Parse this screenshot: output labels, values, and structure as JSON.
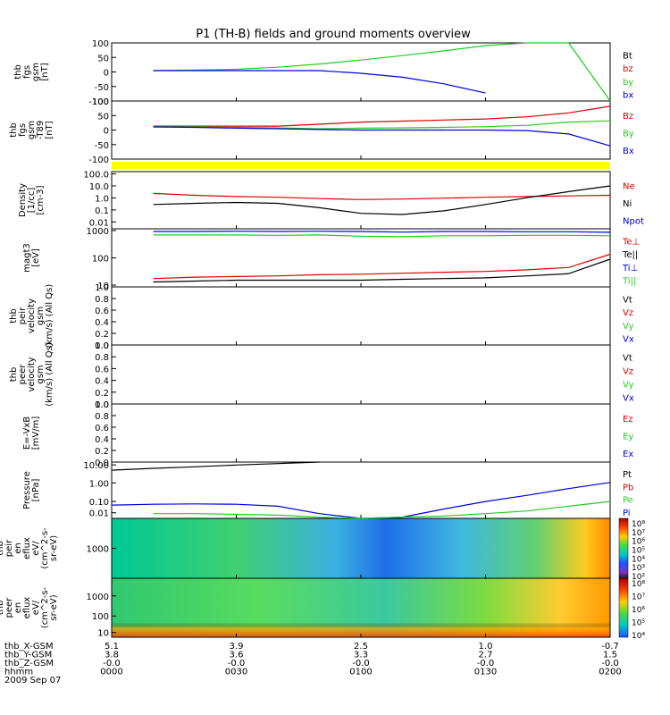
{
  "title": "P1 (TH-B) fields and ground moments overview",
  "colors": {
    "black": "#000000",
    "red": "#dd0000",
    "green": "#22cc22",
    "blue": "#0000dd",
    "yellow": "#ffff00"
  },
  "panels": [
    {
      "id": "fgs",
      "ylabel": [
        "thb",
        "fgs",
        "gsm",
        "[nT]"
      ],
      "ticks": [
        "100",
        "50",
        "0",
        "-50",
        "-100"
      ],
      "legend": [
        {
          "t": "Bt",
          "c": "black"
        },
        {
          "t": "bz",
          "c": "red"
        },
        {
          "t": "by",
          "c": "green"
        },
        {
          "t": "bx",
          "c": "blue"
        }
      ]
    },
    {
      "id": "fgs-t89",
      "ylabel": [
        "thb",
        "fgs",
        "gsm",
        "-T89",
        "[nT]"
      ],
      "ticks": [
        "100",
        "50",
        "0",
        "-50",
        "-100"
      ],
      "legend": [
        {
          "t": "Bz",
          "c": "red"
        },
        {
          "t": "By",
          "c": "green"
        },
        {
          "t": "Bx",
          "c": "blue"
        }
      ]
    },
    {
      "id": "density",
      "ylabel": [
        "Density",
        "[1/cc]",
        "[cm-3]"
      ],
      "ticks": [
        "100.0",
        "10.0",
        "1.0",
        "0.1",
        "0.01"
      ],
      "legend": [
        {
          "t": "Ne",
          "c": "red"
        },
        {
          "t": "Ni",
          "c": "black"
        },
        {
          "t": "Npot",
          "c": "blue"
        }
      ]
    },
    {
      "id": "temp",
      "ylabel": [
        "magt3",
        "[eV]"
      ],
      "ticks": [
        "1000",
        "100",
        "10"
      ],
      "legend": [
        {
          "t": "Te⊥",
          "c": "red"
        },
        {
          "t": "Te||",
          "c": "black"
        },
        {
          "t": "Ti⊥",
          "c": "blue"
        },
        {
          "t": "Ti||",
          "c": "green"
        }
      ]
    },
    {
      "id": "peir",
      "ylabel": [
        "thb",
        "peir",
        "velocity",
        "gsm",
        "(km/s) (All Qs)"
      ],
      "ticks": [
        "1.0",
        "0.8",
        "0.6",
        "0.4",
        "0.2",
        "0.0"
      ],
      "legend": [
        {
          "t": "Vt",
          "c": "black"
        },
        {
          "t": "Vz",
          "c": "red"
        },
        {
          "t": "Vy",
          "c": "green"
        },
        {
          "t": "Vx",
          "c": "blue"
        }
      ]
    },
    {
      "id": "peer",
      "ylabel": [
        "thb",
        "peer",
        "velocity",
        "gsm",
        "(km/s) (All Qs)"
      ],
      "ticks": [
        "1.0",
        "0.8",
        "0.6",
        "0.4",
        "0.2",
        "0.0"
      ],
      "legend": [
        {
          "t": "Vt",
          "c": "black"
        },
        {
          "t": "Vz",
          "c": "red"
        },
        {
          "t": "Vy",
          "c": "green"
        },
        {
          "t": "Vx",
          "c": "blue"
        }
      ]
    },
    {
      "id": "efield",
      "ylabel": [
        "E=-VxB",
        "[mV/m]"
      ],
      "ticks": [
        "1.0",
        "0.8",
        "0.6",
        "0.4",
        "0.2",
        "0.0"
      ],
      "legend": [
        {
          "t": "Ez",
          "c": "red"
        },
        {
          "t": "Ey",
          "c": "green"
        },
        {
          "t": "Ex",
          "c": "blue"
        }
      ]
    },
    {
      "id": "pressure",
      "ylabel": [
        "Pressure",
        "[nPa]"
      ],
      "ticks": [
        "10.00",
        "1.00",
        "0.10",
        "0.01"
      ],
      "legend": [
        {
          "t": "Pt",
          "c": "black"
        },
        {
          "t": "Pb",
          "c": "red"
        },
        {
          "t": "Pe",
          "c": "green"
        },
        {
          "t": "Pi",
          "c": "blue"
        }
      ]
    },
    {
      "id": "peir-spec",
      "ylabel": [
        "thb",
        "peir",
        "en",
        "eflux",
        "eV/",
        "(cm^2-s-",
        "sr-eV)"
      ],
      "ticks": [
        "1000"
      ],
      "colorbar": [
        "10⁸",
        "10⁷",
        "10⁶",
        "10⁵",
        "10⁴",
        "10³",
        "10²"
      ]
    },
    {
      "id": "peer-spec",
      "ylabel": [
        "thb",
        "peer",
        "en",
        "eflux",
        "eV/",
        "(cm^2-s-",
        "sr-eV)"
      ],
      "ticks": [
        "1000",
        "100",
        "10"
      ],
      "colorbar": [
        "10⁸",
        "10⁷",
        "10⁶",
        "10⁵",
        "10⁴"
      ]
    }
  ],
  "footer": {
    "row_labels": [
      "thb_X-GSM",
      "thb_Y-GSM",
      "thb_Z-GSM",
      "hhmm",
      "2009 Sep 07"
    ],
    "columns": [
      [
        "5.1",
        "3.8",
        "-0.0",
        "0000"
      ],
      [
        "3.9",
        "3.6",
        "-0.0",
        "0030"
      ],
      [
        "2.5",
        "3.3",
        "-0.0",
        "0100"
      ],
      [
        "1.0",
        "2.7",
        "-0.0",
        "0130"
      ],
      [
        "-0.7",
        "1.5",
        "-0.0",
        "0200"
      ]
    ]
  },
  "chart_data": [
    {
      "type": "line",
      "panel": "fgs",
      "ylim": [
        -120,
        100
      ],
      "x_minutes": [
        0,
        10,
        20,
        30,
        40,
        50,
        60,
        70,
        80,
        90,
        100,
        110,
        120
      ],
      "series": [
        {
          "name": "by",
          "values": [
            null,
            -5,
            -3,
            0,
            8,
            20,
            35,
            52,
            70,
            90,
            100,
            100,
            -120
          ]
        },
        {
          "name": "bx",
          "values": [
            null,
            -5,
            -5,
            -5,
            -5,
            -5,
            -15,
            -30,
            -55,
            -90,
            null,
            null,
            null
          ]
        }
      ]
    },
    {
      "type": "line",
      "panel": "fgs-t89",
      "ylim": [
        -120,
        100
      ],
      "x_minutes": [
        0,
        10,
        20,
        30,
        40,
        50,
        60,
        70,
        80,
        90,
        100,
        110,
        120
      ],
      "series": [
        {
          "name": "Bz",
          "values": [
            null,
            5,
            5,
            5,
            5,
            12,
            20,
            24,
            28,
            32,
            40,
            55,
            80
          ]
        },
        {
          "name": "By",
          "values": [
            null,
            3,
            2,
            0,
            -2,
            -5,
            -3,
            -2,
            0,
            3,
            8,
            20,
            25
          ]
        },
        {
          "name": "Bx",
          "values": [
            null,
            2,
            0,
            -3,
            -5,
            -8,
            -10,
            -10,
            -10,
            -10,
            -12,
            -25,
            -70
          ]
        }
      ]
    },
    {
      "type": "line",
      "panel": "density",
      "yscale": "log",
      "ylim": [
        0.01,
        100
      ],
      "x_minutes": [
        0,
        10,
        20,
        30,
        40,
        50,
        60,
        70,
        80,
        90,
        100,
        110,
        120
      ],
      "series": [
        {
          "name": "Ne",
          "values": [
            null,
            3,
            2.2,
            1.8,
            1.6,
            1.3,
            1.1,
            1.2,
            1.4,
            1.6,
            1.8,
            2.0,
            2.2
          ]
        },
        {
          "name": "Ni",
          "values": [
            null,
            0.5,
            0.6,
            0.7,
            0.6,
            0.3,
            0.12,
            0.1,
            0.18,
            0.5,
            1.5,
            4,
            10
          ]
        }
      ]
    },
    {
      "type": "line",
      "panel": "temp",
      "yscale": "log",
      "ylim": [
        8,
        1000
      ],
      "x_minutes": [
        0,
        10,
        20,
        30,
        40,
        50,
        60,
        70,
        80,
        90,
        100,
        110,
        120
      ],
      "series": [
        {
          "name": "Ti⊥",
          "values": [
            null,
            800,
            800,
            820,
            800,
            820,
            800,
            760,
            800,
            800,
            780,
            780,
            750
          ]
        },
        {
          "name": "Ti||",
          "values": [
            null,
            600,
            600,
            600,
            580,
            600,
            540,
            520,
            560,
            560,
            580,
            580,
            560
          ]
        },
        {
          "name": "Te⊥",
          "values": [
            null,
            16,
            18,
            19,
            20,
            22,
            23,
            25,
            27,
            29,
            33,
            40,
            120
          ]
        },
        {
          "name": "Te||",
          "values": [
            null,
            12,
            13,
            14,
            14,
            14,
            14,
            15,
            16,
            17,
            20,
            24,
            80
          ]
        }
      ]
    },
    {
      "type": "line",
      "panel": "pressure",
      "yscale": "log",
      "ylim": [
        0.005,
        20
      ],
      "x_minutes": [
        0,
        10,
        20,
        30,
        40,
        50,
        60,
        70,
        80,
        90,
        100,
        110,
        120
      ],
      "series": [
        {
          "name": "Pt",
          "values": [
            6,
            8,
            10,
            13,
            16,
            20,
            null,
            null,
            null,
            null,
            null,
            null,
            null
          ]
        },
        {
          "name": "Pi",
          "values": [
            0.035,
            0.04,
            0.042,
            0.04,
            0.03,
            0.01,
            0.004,
            0.006,
            0.02,
            0.06,
            0.15,
            0.4,
            1.0
          ]
        },
        {
          "name": "Pe",
          "values": [
            null,
            0.01,
            0.01,
            0.009,
            0.008,
            0.006,
            0.005,
            0.006,
            0.007,
            0.01,
            0.015,
            0.03,
            0.06
          ]
        }
      ]
    }
  ]
}
